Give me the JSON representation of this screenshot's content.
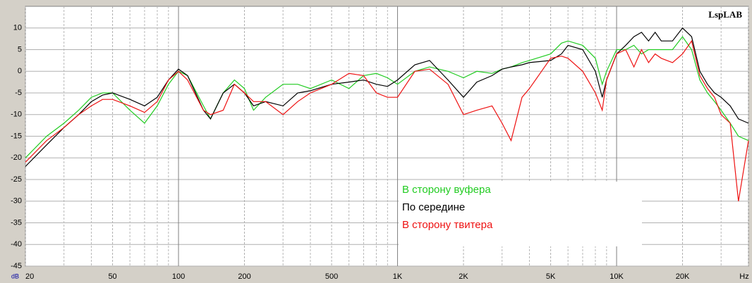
{
  "chart_data": {
    "type": "line",
    "title": "LspLAB",
    "x_label": "Hz",
    "y_label": "dB",
    "log_x": true,
    "grid": true,
    "xlim": [
      20,
      40000
    ],
    "ylim": [
      -45,
      15
    ],
    "xticks": [
      20,
      50,
      100,
      200,
      500,
      {
        "value": 1000,
        "label": "1K"
      },
      {
        "value": 2000,
        "label": "2K"
      },
      {
        "value": 5000,
        "label": "5K"
      },
      {
        "value": 10000,
        "label": "10K"
      },
      {
        "value": 20000,
        "label": "20K"
      }
    ],
    "minor_xticks": [
      30,
      40,
      60,
      70,
      80,
      90,
      300,
      400,
      600,
      700,
      800,
      900,
      3000,
      4000,
      6000,
      7000,
      8000,
      9000,
      30000,
      40000
    ],
    "yticks": [
      10,
      5,
      0,
      -5,
      -10,
      -15,
      -20,
      -25,
      -30,
      -35,
      -40,
      -45
    ],
    "x": [
      20,
      25,
      30,
      35,
      40,
      45,
      50,
      60,
      70,
      80,
      90,
      100,
      110,
      130,
      140,
      160,
      180,
      200,
      220,
      250,
      300,
      350,
      400,
      500,
      600,
      700,
      800,
      900,
      1000,
      1200,
      1400,
      1700,
      2000,
      2300,
      2700,
      3000,
      3300,
      3700,
      4000,
      5000,
      5600,
      6000,
      7000,
      8000,
      8600,
      9000,
      10000,
      11000,
      12000,
      13000,
      14000,
      15000,
      16000,
      18000,
      20000,
      22000,
      24000,
      26000,
      28000,
      30000,
      33000,
      36000,
      40000
    ],
    "series": [
      {
        "name": "В сторону вуфера",
        "color": "#22cc22",
        "values": [
          -20,
          -15,
          -12,
          -9,
          -6,
          -5,
          -5,
          -9,
          -12,
          -8,
          -3,
          0,
          -1,
          -8,
          -11,
          -5,
          -2,
          -4,
          -9,
          -6,
          -3,
          -3,
          -4,
          -2,
          -4,
          -1,
          -0.5,
          -1.5,
          -3,
          0,
          1,
          0,
          -1.5,
          0,
          -0.5,
          0.5,
          1,
          2,
          2.5,
          4,
          6.5,
          7,
          6,
          3,
          -3,
          0,
          5,
          5,
          6,
          4,
          5,
          5,
          5,
          5,
          8,
          5,
          -2,
          -5,
          -7,
          -9,
          -12,
          -15,
          -16
        ]
      },
      {
        "name": "По середине",
        "color": "#000000",
        "values": [
          -22,
          -17,
          -13,
          -10,
          -7,
          -5.5,
          -5,
          -6.5,
          -8,
          -6,
          -2,
          0.5,
          -1,
          -9,
          -11,
          -5,
          -3,
          -5,
          -8,
          -7,
          -8,
          -5,
          -4.5,
          -3,
          -2.5,
          -2,
          -3,
          -3.5,
          -2,
          1.5,
          2.5,
          -2,
          -6,
          -2.5,
          -1,
          0.5,
          1,
          1.5,
          2,
          2.5,
          4,
          6,
          5,
          0,
          -6,
          -2,
          4,
          6,
          8,
          9,
          7,
          9,
          7,
          7,
          10,
          8,
          0,
          -3,
          -5,
          -6,
          -8,
          -11,
          -12
        ]
      },
      {
        "name": "В сторону твитера",
        "color": "#ee1111",
        "values": [
          -21,
          -16,
          -13,
          -10,
          -8,
          -6.5,
          -6.5,
          -8,
          -9.5,
          -7,
          -2,
          0,
          -2,
          -9,
          -10,
          -9,
          -3,
          -5,
          -7,
          -7,
          -10,
          -7,
          -5,
          -3,
          -0.5,
          -1,
          -5,
          -6,
          -6,
          0,
          0.5,
          -3,
          -10,
          -9,
          -8,
          -12,
          -16,
          -6,
          -4,
          3,
          3.5,
          3,
          0,
          -5,
          -9,
          -2,
          4,
          5,
          1,
          5,
          2,
          4,
          3,
          2,
          4,
          7,
          -1,
          -4,
          -6,
          -10,
          -12,
          -30,
          -16
        ]
      }
    ]
  }
}
